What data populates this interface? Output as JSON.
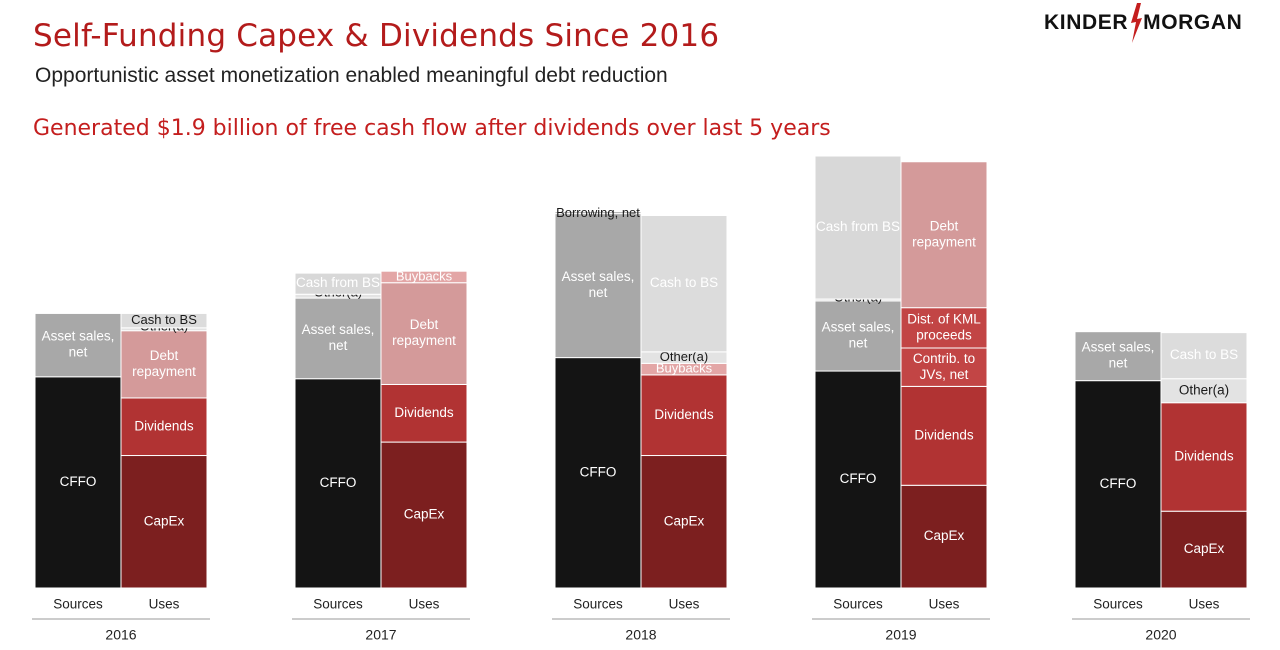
{
  "header": {
    "title": "Self-Funding Capex & Dividends Since 2016",
    "subtitle": "Opportunistic asset monetization enabled meaningful debt reduction",
    "headline": "Generated $1.9 billion of free cash flow after dividends over last 5 years"
  },
  "logo": {
    "left": "KINDER",
    "right": "MORGAN",
    "icon": "lightning-bolt-icon"
  },
  "colors": {
    "title": "#b31b1b",
    "headline": "#c41e1e",
    "cffo": "#141414",
    "asset_sales": "#a8a8a8",
    "borrowing": "#a8a8a8",
    "other": "#e3e3e3",
    "cash_from_bs": "#d8d8d8",
    "cash_to_bs": "#dcdcdc",
    "capex": "#7c1f1f",
    "dividends": "#b13333",
    "debt_repayment": "#d49a9a",
    "buybacks": "#e3a6a6",
    "dist_kml": "#c24545",
    "contrib_jvs": "#c24545"
  },
  "chart_data": {
    "type": "bar",
    "stacked": true,
    "unit": "",
    "bar_labels": [
      "Sources",
      "Uses"
    ],
    "ylim": [
      0,
      4.5
    ],
    "years": [
      {
        "year": "2016",
        "sources": [
          {
            "label": "CFFO",
            "value": 2.2,
            "color_key": "cffo"
          },
          {
            "label": "Asset sales, net",
            "value": 0.66,
            "color_key": "asset_sales"
          }
        ],
        "uses": [
          {
            "label": "CapEx",
            "value": 1.38,
            "color_key": "capex"
          },
          {
            "label": "Dividends",
            "value": 0.6,
            "color_key": "dividends"
          },
          {
            "label": "Debt repayment",
            "value": 0.7,
            "color_key": "debt_repayment"
          },
          {
            "label": "Other(a)",
            "value": 0.03,
            "color_key": "other"
          },
          {
            "label": "Cash to BS",
            "value": 0.15,
            "color_key": "cash_to_bs"
          }
        ]
      },
      {
        "year": "2017",
        "sources": [
          {
            "label": "CFFO",
            "value": 2.18,
            "color_key": "cffo"
          },
          {
            "label": "Asset sales, net",
            "value": 0.84,
            "color_key": "asset_sales"
          },
          {
            "label": "Other(a)",
            "value": 0.04,
            "color_key": "other"
          },
          {
            "label": "Cash from BS",
            "value": 0.22,
            "color_key": "cash_from_bs"
          }
        ],
        "uses": [
          {
            "label": "CapEx",
            "value": 1.52,
            "color_key": "capex"
          },
          {
            "label": "Dividends",
            "value": 0.6,
            "color_key": "dividends"
          },
          {
            "label": "Debt repayment",
            "value": 1.06,
            "color_key": "debt_repayment"
          },
          {
            "label": "Buybacks",
            "value": 0.12,
            "color_key": "buybacks"
          }
        ]
      },
      {
        "year": "2018",
        "sources": [
          {
            "label": "CFFO",
            "value": 2.4,
            "color_key": "cffo"
          },
          {
            "label": "Asset sales, net",
            "value": 1.5,
            "color_key": "asset_sales"
          },
          {
            "label": "Borrowing, net",
            "value": 0.02,
            "color_key": "borrowing"
          }
        ],
        "uses": [
          {
            "label": "CapEx",
            "value": 1.38,
            "color_key": "capex"
          },
          {
            "label": "Dividends",
            "value": 0.84,
            "color_key": "dividends"
          },
          {
            "label": "Buybacks",
            "value": 0.12,
            "color_key": "buybacks"
          },
          {
            "label": "Other(a)",
            "value": 0.12,
            "color_key": "other"
          },
          {
            "label": "Cash to BS",
            "value": 1.42,
            "color_key": "cash_to_bs"
          }
        ]
      },
      {
        "year": "2019",
        "sources": [
          {
            "label": "CFFO",
            "value": 2.26,
            "color_key": "cffo"
          },
          {
            "label": "Asset sales, net",
            "value": 0.73,
            "color_key": "asset_sales"
          },
          {
            "label": "Other(a)",
            "value": 0.02,
            "color_key": "other"
          },
          {
            "label": "Cash from BS",
            "value": 1.49,
            "color_key": "cash_from_bs"
          }
        ],
        "uses": [
          {
            "label": "CapEx",
            "value": 1.07,
            "color_key": "capex"
          },
          {
            "label": "Dividends",
            "value": 1.03,
            "color_key": "dividends"
          },
          {
            "label": "Contrib. to JVs, net",
            "value": 0.4,
            "color_key": "contrib_jvs"
          },
          {
            "label": "Dist. of KML proceeds",
            "value": 0.42,
            "color_key": "dist_kml"
          },
          {
            "label": "Debt repayment",
            "value": 1.52,
            "color_key": "debt_repayment"
          }
        ]
      },
      {
        "year": "2020",
        "sources": [
          {
            "label": "CFFO",
            "value": 2.16,
            "color_key": "cffo"
          },
          {
            "label": "Asset sales, net",
            "value": 0.51,
            "color_key": "asset_sales"
          }
        ],
        "uses": [
          {
            "label": "CapEx",
            "value": 0.8,
            "color_key": "capex"
          },
          {
            "label": "Dividends",
            "value": 1.13,
            "color_key": "dividends"
          },
          {
            "label": "Other(a)",
            "value": 0.25,
            "color_key": "other"
          },
          {
            "label": "Cash to BS",
            "value": 0.48,
            "color_key": "cash_to_bs"
          }
        ]
      }
    ]
  }
}
